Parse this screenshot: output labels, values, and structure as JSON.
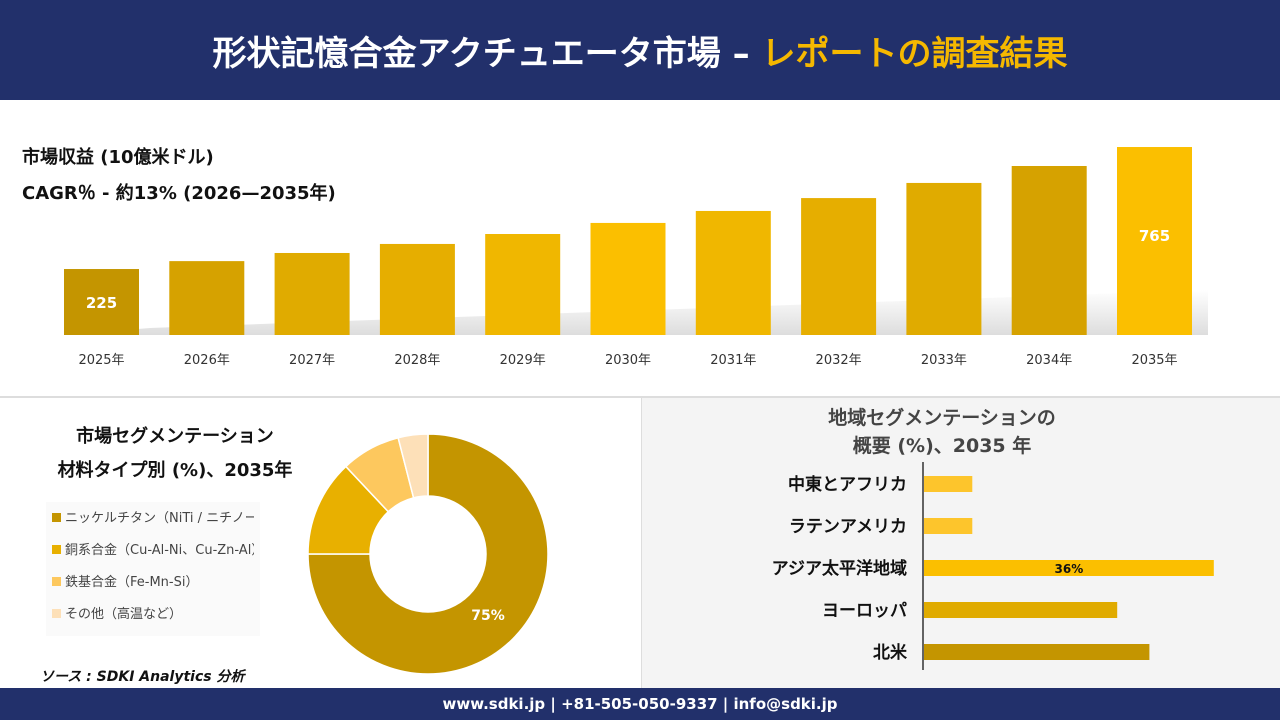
{
  "header": {
    "title_main": "形状記憶合金アクチュエータ市場 –",
    "title_accent": "レポートの調査結果"
  },
  "info": {
    "revenue_label": "市場収益 (10億米ドル)",
    "cagr_label": "CAGR％ - 約13% (2026—2035年)"
  },
  "colors": {
    "navy": "#22306b",
    "gold_dark": "#c49500",
    "gold": "#e0ab00",
    "gold_bright": "#fbbf00",
    "gold_light": "#fdc85e",
    "gold_pale": "#fde0b8"
  },
  "chart_data": [
    {
      "type": "bar",
      "categories": [
        "2025年",
        "2026年",
        "2027年",
        "2028年",
        "2029年",
        "2030年",
        "2031年",
        "2032年",
        "2033年",
        "2034年",
        "2035年"
      ],
      "values": [
        225,
        260,
        296,
        336,
        380,
        429,
        482,
        539,
        606,
        681,
        765
      ],
      "data_labels": {
        "0": "225",
        "10": "765"
      }
    },
    {
      "type": "pie",
      "title_lines": [
        "市場セグメンテーション",
        "材料タイプ別 (%)、2035年"
      ],
      "categories": [
        "ニッケルチタン（NiTi / ニチノール）",
        "銅系合金（Cu-Al-Ni、Cu-Zn-Al）",
        "鉄基合金（Fe-Mn-Si）",
        "その他（高温など）"
      ],
      "values": [
        75,
        13,
        8,
        4
      ],
      "data_labels": {
        "0": "75%"
      },
      "colors": [
        "#c49500",
        "#e8b000",
        "#fdc85e",
        "#fde0b8"
      ]
    },
    {
      "type": "bar",
      "orientation": "horizontal",
      "title_lines": [
        "地域セグメンテーションの",
        "概要 (%)、2035 年"
      ],
      "categories": [
        "中東とアフリカ",
        "ラテンアメリカ",
        "アジア太平洋地域",
        "ヨーロッパ",
        "北米"
      ],
      "values": [
        6,
        6,
        36,
        24,
        28
      ],
      "data_labels": {
        "2": "36%"
      },
      "colors": [
        "#fdc52c",
        "#fdc52c",
        "#fbbf00",
        "#e0ab00",
        "#c49500"
      ]
    }
  ],
  "source": "ソース : SDKI Analytics 分析",
  "footer": "www.sdki.jp | +81-505-050-9337 | info@sdki.jp"
}
